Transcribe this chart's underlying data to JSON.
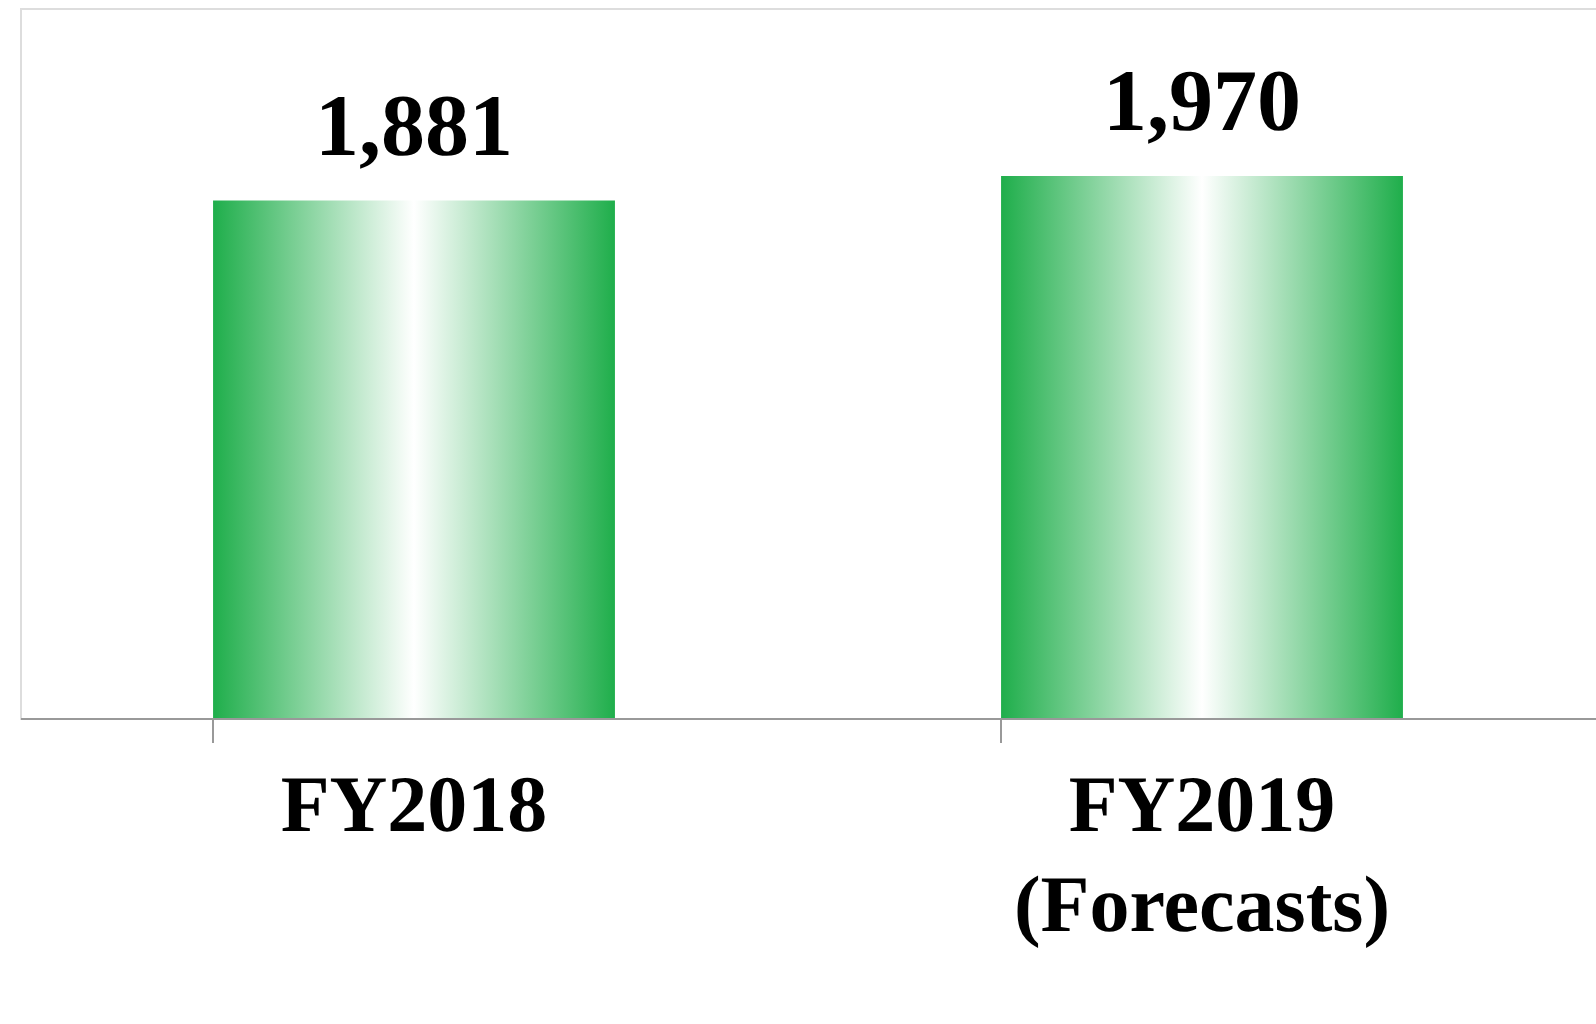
{
  "chart_data": {
    "type": "bar",
    "categories": [
      "FY2018",
      "FY2019\n(Forecasts)"
    ],
    "values": [
      1881,
      1970
    ],
    "value_labels": [
      "1,881",
      "1,970"
    ],
    "colors": [
      "#1fae4b",
      "#1fae4b"
    ]
  }
}
